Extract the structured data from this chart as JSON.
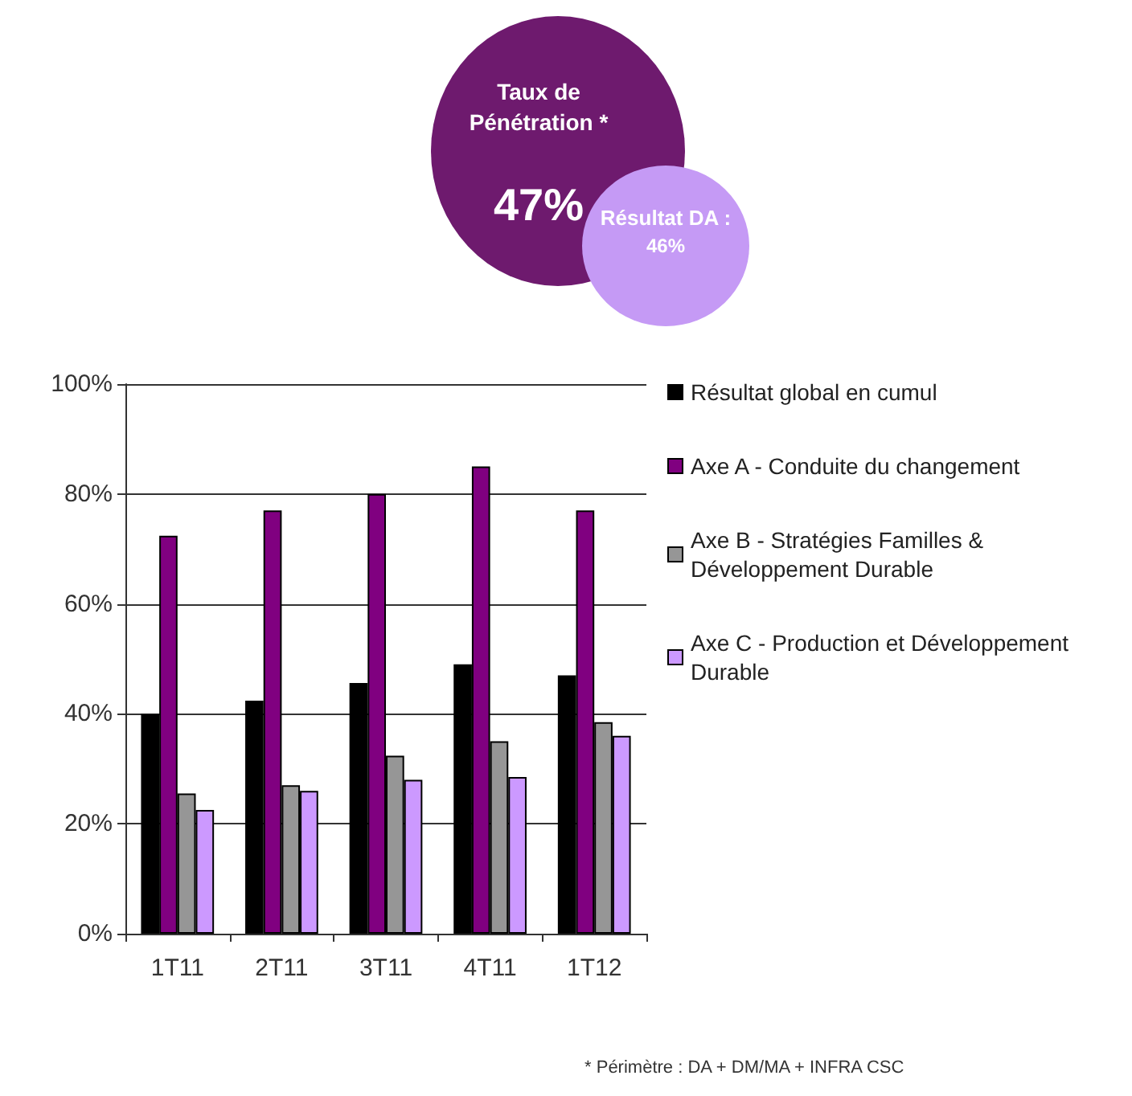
{
  "chart_data": {
    "type": "bar",
    "categories": [
      "1T11",
      "2T11",
      "3T11",
      "4T11",
      "1T12"
    ],
    "series": [
      {
        "name": "Résultat global en cumul",
        "color": "#000000",
        "values": [
          40,
          42.4,
          45.6,
          49,
          47
        ]
      },
      {
        "name": "Axe A - Conduite du changement",
        "color": "#800080",
        "values": [
          72.4,
          77,
          80,
          85,
          77
        ]
      },
      {
        "name": "Axe B - Stratégies Familles & Développement Durable",
        "color": "#969696",
        "values": [
          25.5,
          27,
          32.4,
          35,
          38.5
        ]
      },
      {
        "name": "Axe C - Production et Développement Durable",
        "color": "#cc99ff",
        "values": [
          22.5,
          26,
          28,
          28.5,
          36
        ]
      }
    ],
    "ylim": [
      0,
      100
    ],
    "yticks": [
      {
        "value": 0,
        "label": "0%"
      },
      {
        "value": 20,
        "label": "20%"
      },
      {
        "value": 40,
        "label": "40%"
      },
      {
        "value": 60,
        "label": "60%"
      },
      {
        "value": 80,
        "label": "80%"
      },
      {
        "value": 100,
        "label": "100%"
      }
    ],
    "grid": "y",
    "legend": "right",
    "annotations": [
      "Taux de Pénétration *",
      "47%",
      "Résultat DA :",
      "46%",
      "* Périmètre : DA + DM/MA + INFRA CSC"
    ]
  }
}
